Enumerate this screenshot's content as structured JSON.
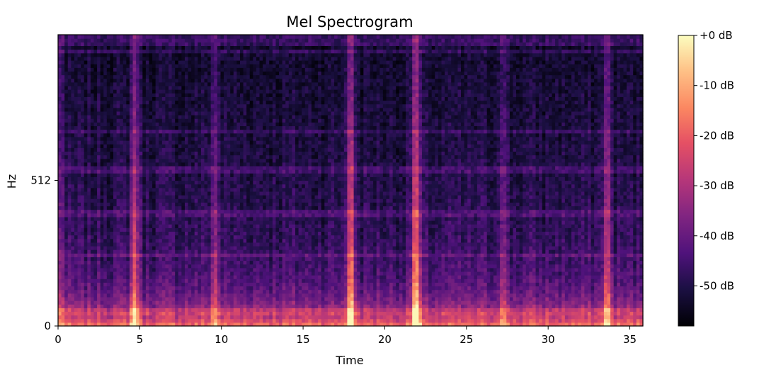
{
  "chart_data": {
    "type": "heatmap",
    "title": "Mel Spectrogram",
    "xlabel": "Time",
    "ylabel": "Hz",
    "xlim": [
      0,
      35.8
    ],
    "ylim": [
      0,
      1024
    ],
    "x_ticks": [
      0,
      5,
      10,
      15,
      20,
      25,
      30,
      35
    ],
    "x_tick_labels": [
      "0",
      "5",
      "10",
      "15",
      "20",
      "25",
      "30",
      "35"
    ],
    "y_ticks": [
      0,
      512
    ],
    "y_tick_labels": [
      "0",
      "512"
    ],
    "colormap": "magma",
    "colorbar": {
      "range": [
        -58,
        0
      ],
      "ticks": [
        0,
        -10,
        -20,
        -30,
        -40,
        -50
      ],
      "tick_labels": [
        "+0 dB",
        "-10 dB",
        "-20 dB",
        "-30 dB",
        "-40 dB",
        "-50 dB"
      ]
    },
    "grid": false,
    "grid_shape": {
      "time_frames": 180,
      "mel_bins": 80
    },
    "noise_floor_db": -49,
    "low_frequency_energy_db": -6,
    "vertical_streaks": [
      {
        "time": 4.7,
        "peak_db": -20
      },
      {
        "time": 9.6,
        "peak_db": -32
      },
      {
        "time": 17.9,
        "peak_db": -14
      },
      {
        "time": 21.9,
        "peak_db": -10
      },
      {
        "time": 27.2,
        "peak_db": -34
      },
      {
        "time": 33.6,
        "peak_db": -25
      }
    ],
    "horizontal_bands_hz": [
      50,
      250,
      396,
      552,
      688,
      970
    ]
  }
}
